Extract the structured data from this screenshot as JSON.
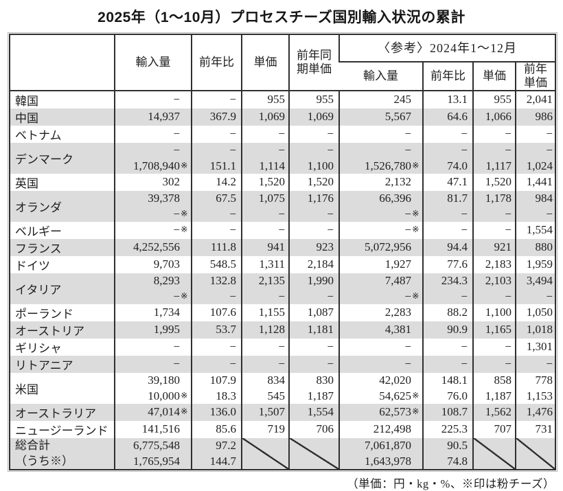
{
  "title": "2025年（1〜10月）プロセスチーズ国別輸入状況の累計",
  "footnote": "（単価：円・kg・%、※印は粉チーズ）",
  "colors": {
    "grid_line": "#2f2f2f",
    "row_shade": "#dcdcdc",
    "text": "#1f1f1f"
  },
  "table": {
    "columns": {
      "import_volume": "輸入量",
      "yoy": "前年比",
      "unit_price": "単価",
      "prev_period_unit_price": "前年同期単価",
      "reference_group": "〈参考〉2024年1〜12月",
      "ref_import_volume": "輸入量",
      "ref_yoy": "前年比",
      "ref_unit_price": "単価",
      "ref_prev_year_unit_price": "前年単価"
    },
    "rows": [
      {
        "label": "韓国",
        "shaded": false,
        "lines": [
          [
            "−",
            "−",
            "955",
            "955",
            "245",
            "13.1",
            "955",
            "2,041"
          ]
        ]
      },
      {
        "label": "中国",
        "shaded": true,
        "lines": [
          [
            "14,937",
            "367.9",
            "1,069",
            "1,069",
            "5,567",
            "64.6",
            "1,066",
            "986"
          ]
        ]
      },
      {
        "label": "ベトナム",
        "shaded": false,
        "lines": [
          [
            "−",
            "−",
            "−",
            "−",
            "−",
            "−",
            "−",
            "−"
          ]
        ]
      },
      {
        "label": "デンマーク",
        "shaded": true,
        "lines": [
          [
            "−",
            "−",
            "−",
            "−",
            "−",
            "−",
            "−",
            "−"
          ],
          [
            "1,708,940※",
            "151.1",
            "1,114",
            "1,100",
            "1,526,780※",
            "74.0",
            "1,117",
            "1,024"
          ]
        ]
      },
      {
        "label": "英国",
        "shaded": false,
        "lines": [
          [
            "302",
            "14.2",
            "1,520",
            "1,520",
            "2,132",
            "47.1",
            "1,520",
            "1,441"
          ]
        ]
      },
      {
        "label": "オランダ",
        "shaded": true,
        "lines": [
          [
            "39,378",
            "67.5",
            "1,075",
            "1,176",
            "66,396",
            "81.7",
            "1,178",
            "984"
          ],
          [
            "−※",
            "−",
            "−",
            "−",
            "−※",
            "−",
            "−",
            "−"
          ]
        ]
      },
      {
        "label": "ベルギー",
        "shaded": false,
        "lines": [
          [
            "−※",
            "−",
            "−",
            "−",
            "−※",
            "−",
            "−",
            "1,554"
          ]
        ]
      },
      {
        "label": "フランス",
        "shaded": true,
        "lines": [
          [
            "4,252,556",
            "111.8",
            "941",
            "923",
            "5,072,956",
            "94.4",
            "921",
            "880"
          ]
        ]
      },
      {
        "label": "ドイツ",
        "shaded": false,
        "lines": [
          [
            "9,703",
            "548.5",
            "1,311",
            "2,184",
            "1,927",
            "77.6",
            "2,183",
            "1,959"
          ]
        ]
      },
      {
        "label": "イタリア",
        "shaded": true,
        "lines": [
          [
            "8,293",
            "132.8",
            "2,135",
            "1,990",
            "7,487",
            "234.3",
            "2,103",
            "3,494"
          ],
          [
            "−※",
            "−",
            "−",
            "−",
            "−※",
            "−",
            "−",
            "−"
          ]
        ]
      },
      {
        "label": "ポーランド",
        "shaded": false,
        "lines": [
          [
            "1,734",
            "107.6",
            "1,155",
            "1,087",
            "2,283",
            "88.2",
            "1,100",
            "1,050"
          ]
        ]
      },
      {
        "label": "オーストリア",
        "shaded": true,
        "lines": [
          [
            "1,995",
            "53.7",
            "1,128",
            "1,181",
            "4,381",
            "90.9",
            "1,165",
            "1,018"
          ]
        ]
      },
      {
        "label": "ギリシャ",
        "shaded": false,
        "lines": [
          [
            "−",
            "−",
            "−",
            "−",
            "−",
            "−",
            "−",
            "1,301"
          ]
        ]
      },
      {
        "label": "リトアニア",
        "shaded": true,
        "lines": [
          [
            "−",
            "−",
            "−",
            "−",
            "−",
            "−",
            "−",
            "−"
          ]
        ]
      },
      {
        "label": "米国",
        "shaded": false,
        "lines": [
          [
            "39,180",
            "107.9",
            "834",
            "830",
            "42,020",
            "148.1",
            "858",
            "778"
          ],
          [
            "10,000※",
            "18.3",
            "545",
            "1,187",
            "54,625※",
            "76.0",
            "1,187",
            "1,153"
          ]
        ]
      },
      {
        "label": "オーストラリア",
        "shaded": true,
        "lines": [
          [
            "47,014※",
            "136.0",
            "1,507",
            "1,554",
            "62,573※",
            "108.7",
            "1,562",
            "1,476"
          ]
        ]
      },
      {
        "label": "ニュージーランド",
        "shaded": false,
        "lines": [
          [
            "141,516",
            "85.6",
            "719",
            "706",
            "212,498",
            "225.3",
            "707",
            "731"
          ]
        ]
      },
      {
        "label_lines": [
          "総合計",
          "（うち※）"
        ],
        "shaded": true,
        "diag_cols": [
          2,
          3,
          6,
          7
        ],
        "lines": [
          [
            "6,775,548",
            "97.2",
            null,
            null,
            "7,061,870",
            "90.5",
            null,
            null
          ],
          [
            "1,765,954",
            "144.7",
            null,
            null,
            "1,643,978",
            "74.8",
            null,
            null
          ]
        ]
      }
    ]
  }
}
